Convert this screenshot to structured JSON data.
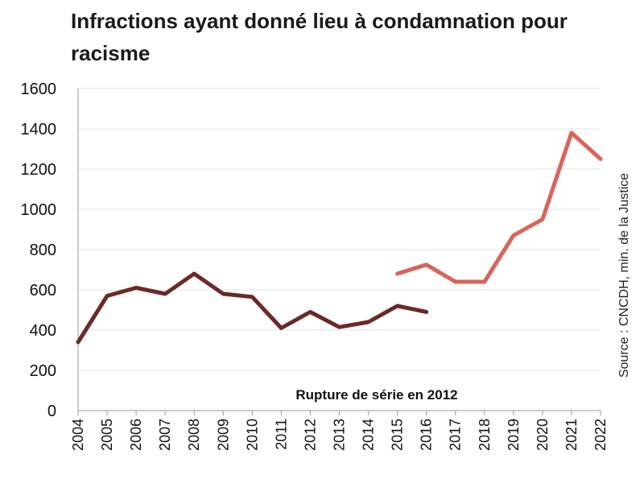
{
  "chart_data": {
    "type": "line",
    "title": "Infractions ayant donné lieu à condamnation pour racisme",
    "xlabel": "",
    "ylabel": "",
    "ylim": [
      0,
      1600
    ],
    "yticks": [
      0,
      200,
      400,
      600,
      800,
      1000,
      1200,
      1400,
      1600
    ],
    "categories": [
      "2004",
      "2005",
      "2006",
      "2007",
      "2008",
      "2009",
      "2010",
      "2011",
      "2012",
      "2013",
      "2014",
      "2015",
      "2016",
      "2017",
      "2018",
      "2019",
      "2020",
      "2021",
      "2022"
    ],
    "grid": true,
    "series": [
      {
        "color": "#6b2a26",
        "x": [
          "2004",
          "2005",
          "2006",
          "2007",
          "2008",
          "2009",
          "2010",
          "2011",
          "2012",
          "2013",
          "2014",
          "2015",
          "2016"
        ],
        "values": [
          340,
          570,
          610,
          580,
          680,
          580,
          565,
          410,
          490,
          415,
          440,
          520,
          490
        ]
      },
      {
        "color": "#d9645a",
        "x": [
          "2015",
          "2016",
          "2017",
          "2018",
          "2019",
          "2020",
          "2021",
          "2022"
        ],
        "values": [
          680,
          725,
          640,
          640,
          870,
          950,
          1380,
          1250
        ]
      }
    ],
    "annotation": "Rupture de série en 2012",
    "source": "Source : CNCDH, min. de la  Justice"
  }
}
